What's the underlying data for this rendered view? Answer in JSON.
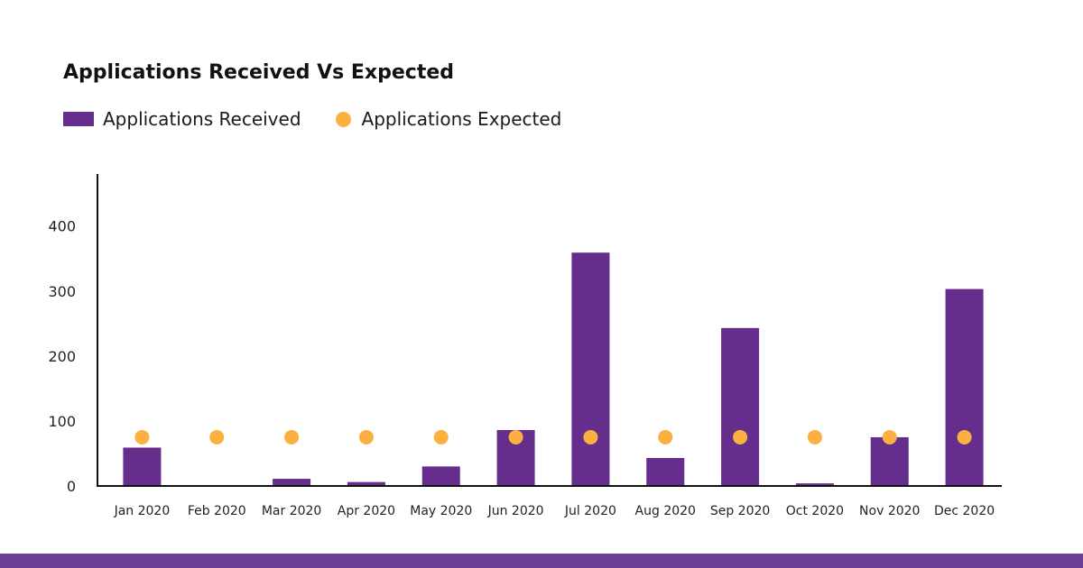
{
  "colors": {
    "bar": "#652d8c",
    "dot": "#fbb040",
    "axis": "#111111",
    "band": "#6b3f93"
  },
  "legend": {
    "received_label": "Applications Received",
    "expected_label": "Applications Expected"
  },
  "chart_data": {
    "type": "bar",
    "title": "Applications Received Vs Expected",
    "xlabel": "",
    "ylabel": "",
    "ylim": [
      0,
      480
    ],
    "yticks": [
      0,
      100,
      200,
      300,
      400
    ],
    "categories": [
      "Jan 2020",
      "Feb 2020",
      "Mar 2020",
      "Apr 2020",
      "May 2020",
      "Jun 2020",
      "Jul 2020",
      "Aug 2020",
      "Sep 2020",
      "Oct 2020",
      "Nov 2020",
      "Dec 2020"
    ],
    "series": [
      {
        "name": "Applications Received",
        "mark": "bar",
        "values": [
          59,
          0,
          11,
          6,
          30,
          86,
          359,
          43,
          243,
          4,
          75,
          303
        ]
      },
      {
        "name": "Applications Expected",
        "mark": "dot",
        "values": [
          75,
          75,
          75,
          75,
          75,
          75,
          75,
          75,
          75,
          75,
          75,
          75
        ]
      }
    ],
    "grid": false,
    "legend_position": "top-left"
  }
}
